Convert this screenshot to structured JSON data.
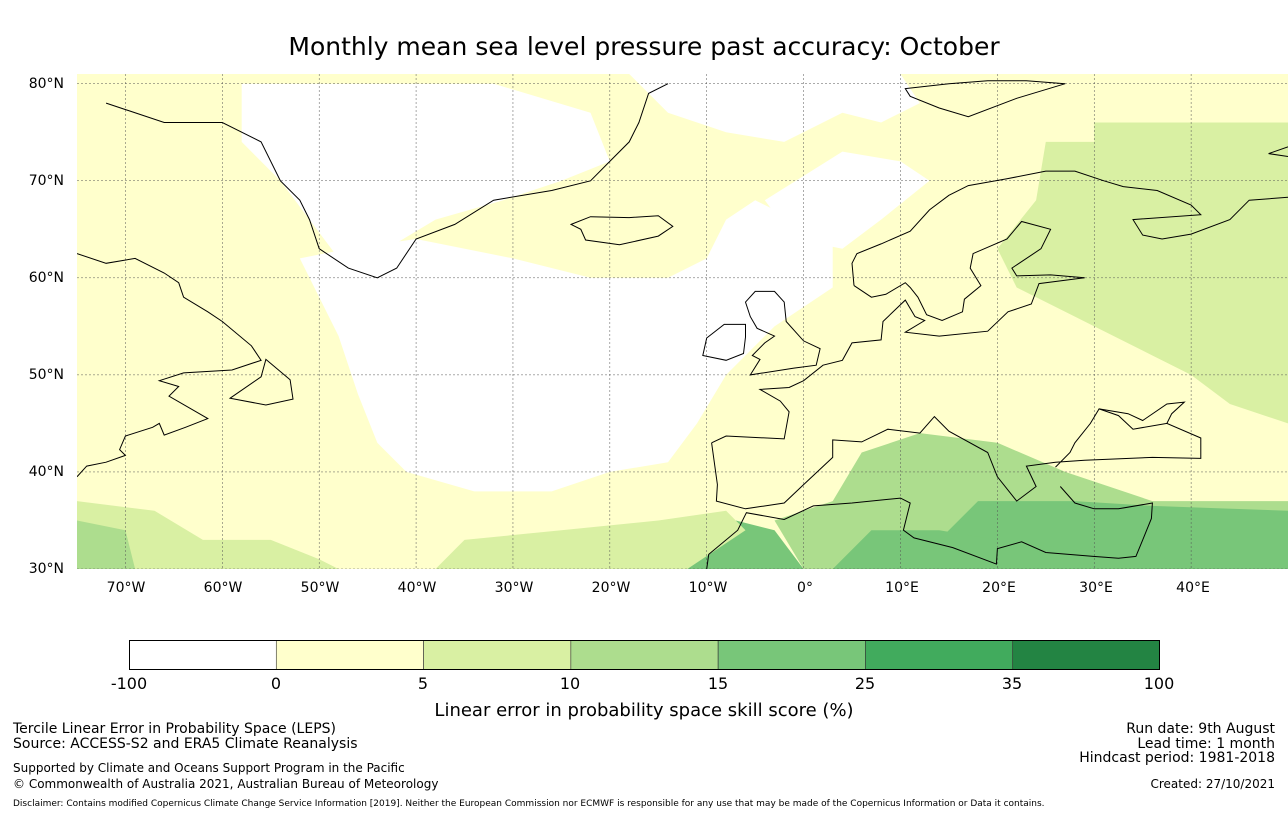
{
  "title": "Monthly mean sea level pressure past accuracy: October",
  "map": {
    "lat_labels": [
      "80°N",
      "70°N",
      "60°N",
      "50°N",
      "40°N",
      "30°N"
    ],
    "lon_labels": [
      "70°W",
      "60°W",
      "50°W",
      "40°W",
      "30°W",
      "20°W",
      "10°W",
      "0°",
      "10°E",
      "20°E",
      "30°E",
      "40°E"
    ],
    "lat_range": [
      30,
      81
    ],
    "lon_range": [
      -75,
      50
    ],
    "gridlines": true,
    "coastline_color": "#000000",
    "regions": [
      {
        "name": "base",
        "level": 1
      },
      {
        "name": "north-atlantic",
        "level": 0
      },
      {
        "name": "greenland-interior",
        "level": 0
      },
      {
        "name": "arctic-white",
        "level": 0
      },
      {
        "name": "norwegian-sea-white",
        "level": 0
      },
      {
        "name": "russia-east",
        "level": 2
      },
      {
        "name": "barents",
        "level": 2
      },
      {
        "name": "mediterranean-east",
        "level": 3
      },
      {
        "name": "levant",
        "level": 4
      },
      {
        "name": "africa-north",
        "level": 4
      },
      {
        "name": "morocco",
        "level": 4
      },
      {
        "name": "atlantic-southeast",
        "level": 2
      },
      {
        "name": "atlantic-south",
        "level": 2
      },
      {
        "name": "caribbean-corner",
        "level": 3
      }
    ]
  },
  "colorbar": {
    "colors": [
      "#ffffff",
      "#ffffcc",
      "#d9f0a3",
      "#addd8e",
      "#78c679",
      "#41ab5d",
      "#238443"
    ],
    "ticks": [
      "-100",
      "0",
      "5",
      "10",
      "15",
      "25",
      "35",
      "100"
    ],
    "label": "Linear error in probability space skill score (%)"
  },
  "footer": {
    "left": {
      "line1": "Tercile Linear Error in Probability Space (LEPS)",
      "line2": "Source: ACCESS-S2 and ERA5 Climate Reanalysis",
      "line3": "Supported by Climate and Oceans Support Program in the Pacific",
      "line4": "© Commonwealth of Australia 2021, Australian Bureau of Meteorology"
    },
    "right": {
      "run_date": "Run date: 9th August",
      "lead_time": "Lead time: 1 month",
      "hindcast": "Hindcast period: 1981-2018",
      "created": "Created: 27/10/2021"
    },
    "disclaimer": "Disclaimer: Contains modified Copernicus Climate Change Service Information [2019]. Neither the European Commission nor ECMWF is responsible for any use that may be made of the Copernicus Information or Data it contains."
  }
}
